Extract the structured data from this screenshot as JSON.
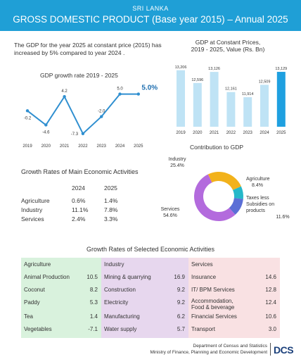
{
  "header": {
    "country": "SRI LANKA",
    "title": "GROSS DOMESTIC PRODUCT  (Base year 2015) – Annual 2025"
  },
  "intro_text": "The GDP for the year 2025 at constant price (2015) has increased by 5% compared to  year 2024 .",
  "colors": {
    "banner": "#1f9fd6",
    "line": "#2f8fd0",
    "bar_light": "#bfe3f5",
    "bar_highlight": "#1fa0e0",
    "industry": "#f2b21b",
    "agriculture": "#25b8c9",
    "taxes": "#5b6fd6",
    "services": "#b36bdd"
  },
  "growth_table": {
    "title": "Growth Rates of Main Economic Activities",
    "headers": [
      "2024",
      "2025"
    ],
    "rows": [
      {
        "label": "Agriculture",
        "v2024": "0.6%",
        "v2025": "1.4%"
      },
      {
        "label": "Industry",
        "v2024": "11.1%",
        "v2025": "7.8%"
      },
      {
        "label": "Services",
        "v2024": "2.4%",
        "v2025": "3.3%"
      }
    ]
  },
  "selected": {
    "title": "Growth Rates of Selected Economic Activities",
    "agriculture": {
      "header": "Agriculture",
      "rows": [
        {
          "name": "Animal Production",
          "value": "10.5"
        },
        {
          "name": "Coconut",
          "value": "8.2"
        },
        {
          "name": "Paddy",
          "value": "5.3"
        },
        {
          "name": "Tea",
          "value": "1.4"
        },
        {
          "name": "Vegetables",
          "value": "-7.1"
        }
      ]
    },
    "industry": {
      "header": "Industry",
      "rows": [
        {
          "name": "Mining & quarrying",
          "value": "16.9"
        },
        {
          "name": "Construction",
          "value": "9.2"
        },
        {
          "name": "Electricity",
          "value": "9.2"
        },
        {
          "name": "Manufacturing",
          "value": "6.2"
        },
        {
          "name": "Water supply",
          "value": "5.7"
        }
      ]
    },
    "services": {
      "header": "Services",
      "rows": [
        {
          "name": "Insurance",
          "value": "14.6"
        },
        {
          "name": "IT/ BPM Services",
          "value": "12.8"
        },
        {
          "name": "Accommodation,\nFood & beverage",
          "value": "12.4"
        },
        {
          "name": "Financial Services",
          "value": "10.6"
        },
        {
          "name": "Transport",
          "value": "3.0"
        }
      ]
    }
  },
  "footer": {
    "line1": "Department of Census and Statistics",
    "line2": "Ministry of Finance, Planning and Economic Development",
    "logo": "DCS"
  },
  "chart_data": [
    {
      "type": "line",
      "title": "GDP growth rate 2019 - 2025",
      "x": [
        "2019",
        "2020",
        "2021",
        "2022",
        "2023",
        "2024",
        "2025"
      ],
      "values": [
        -0.2,
        -4.6,
        4.2,
        -7.3,
        -2.0,
        5.0,
        5.0
      ],
      "labels": [
        "-0.2",
        "-4.6",
        "4.2",
        "-7.3",
        "-2.0",
        "5.0",
        "5.0%"
      ],
      "grid": false
    },
    {
      "type": "bar",
      "title": "GDP at Constant Prices,\n2019 - 2025, Value (Rs. Bn)",
      "categories": [
        "2019",
        "2020",
        "2021",
        "2022",
        "2023",
        "2024",
        "2025"
      ],
      "values": [
        13206,
        12596,
        13126,
        12161,
        11914,
        12509,
        13129
      ],
      "labels": [
        "13,206",
        "12,596",
        "13,126",
        "12,161",
        "11,914",
        "12,509",
        "13,129"
      ],
      "highlight": "2025"
    },
    {
      "type": "pie",
      "title": "Contribution to GDP",
      "slices": [
        {
          "name": "Industry",
          "value": 25.4,
          "label": "25.4%"
        },
        {
          "name": "Agriculture",
          "value": 8.4,
          "label": "8.4%"
        },
        {
          "name": "Taxes less\nSubsidies on\nproducts",
          "value": 11.6,
          "label": "11.6%"
        },
        {
          "name": "Services",
          "value": 54.6,
          "label": "54.6%"
        }
      ]
    }
  ]
}
